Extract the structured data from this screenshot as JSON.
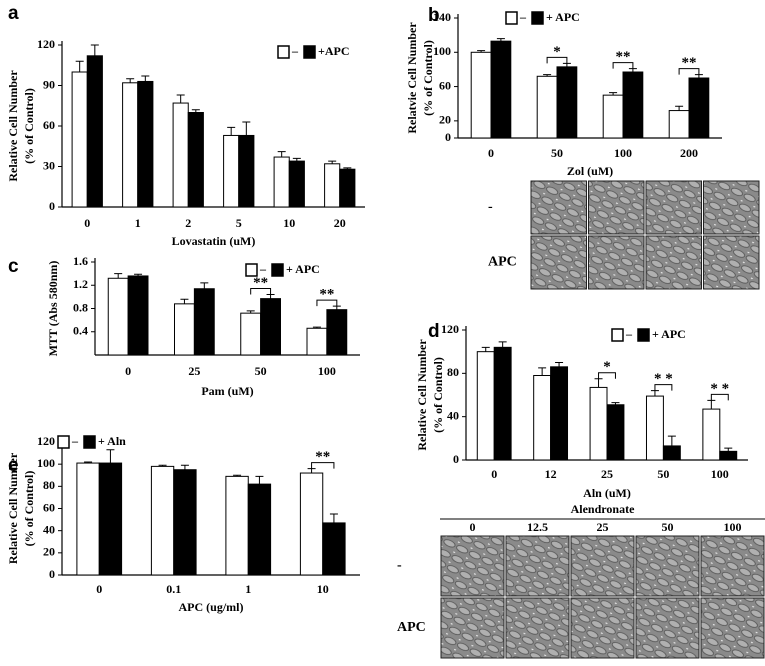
{
  "chart_data": [
    {
      "type": "bar",
      "panel": "a",
      "ylabel": [
        "Relative Cell Number",
        "(% of Control)"
      ],
      "xlabel": "Lovastatin (uM)",
      "categories": [
        "0",
        "1",
        "2",
        "5",
        "10",
        "20"
      ],
      "ylim": [
        0,
        120
      ],
      "yticks": [
        0,
        30,
        60,
        90,
        120
      ],
      "series": [
        {
          "name": "–",
          "color": "#ffffff",
          "values": [
            100,
            92,
            77,
            53,
            37,
            32
          ],
          "errors": [
            8,
            3,
            6,
            6,
            4,
            2
          ]
        },
        {
          "name": "+APC",
          "color": "#000000",
          "values": [
            112,
            93,
            70,
            53,
            34,
            28
          ],
          "errors": [
            8,
            4,
            2,
            10,
            2,
            1
          ]
        }
      ],
      "annotations": []
    },
    {
      "type": "bar",
      "panel": "b",
      "ylabel": [
        "Relatvie Cell Number",
        "(% of Control)"
      ],
      "xlabel": "Zol (uM)",
      "categories": [
        "0",
        "50",
        "100",
        "200"
      ],
      "ylim": [
        0,
        140
      ],
      "yticks": [
        0,
        20,
        60,
        100,
        140
      ],
      "series": [
        {
          "name": "–",
          "color": "#ffffff",
          "values": [
            100,
            72,
            50,
            32
          ],
          "errors": [
            2,
            2,
            3,
            5
          ]
        },
        {
          "name": "+ APC",
          "color": "#000000",
          "values": [
            113,
            83,
            77,
            70
          ],
          "errors": [
            3,
            4,
            4,
            4
          ]
        }
      ],
      "annotations": [
        {
          "category": "50",
          "text": "*"
        },
        {
          "category": "100",
          "text": "**"
        },
        {
          "category": "200",
          "text": "**"
        }
      ]
    },
    {
      "type": "bar",
      "panel": "c",
      "ylabel": [
        "MTT (Abs 580nm)"
      ],
      "xlabel": "Pam (uM)",
      "categories": [
        "0",
        "25",
        "50",
        "100"
      ],
      "ylim": [
        0,
        1.6
      ],
      "yticks": [
        0.4,
        0.8,
        1.2,
        1.6
      ],
      "series": [
        {
          "name": "–",
          "color": "#ffffff",
          "values": [
            1.32,
            0.88,
            0.72,
            0.46
          ],
          "errors": [
            0.08,
            0.08,
            0.04,
            0.02
          ]
        },
        {
          "name": "+ APC",
          "color": "#000000",
          "values": [
            1.36,
            1.14,
            0.97,
            0.78
          ],
          "errors": [
            0.03,
            0.1,
            0.07,
            0.06
          ]
        }
      ],
      "annotations": [
        {
          "category": "50",
          "text": "**"
        },
        {
          "category": "100",
          "text": "**"
        }
      ]
    },
    {
      "type": "bar",
      "panel": "d",
      "ylabel": [
        "Relative Cell Number",
        "(% of Control)"
      ],
      "xlabel": "Aln (uM)",
      "categories": [
        "0",
        "12",
        "25",
        "50",
        "100"
      ],
      "ylim": [
        0,
        120
      ],
      "yticks": [
        0,
        40,
        80,
        120
      ],
      "series": [
        {
          "name": "–",
          "color": "#ffffff",
          "values": [
            100,
            78,
            67,
            59,
            47
          ],
          "errors": [
            4,
            7,
            8,
            5,
            8
          ]
        },
        {
          "name": "+ APC",
          "color": "#000000",
          "values": [
            104,
            86,
            51,
            13,
            8
          ],
          "errors": [
            5,
            4,
            2,
            9,
            3
          ]
        }
      ],
      "annotations": [
        {
          "category": "25",
          "text": "*"
        },
        {
          "category": "50",
          "text": "* *"
        },
        {
          "category": "100",
          "text": "* *"
        }
      ]
    },
    {
      "type": "bar",
      "panel": "e",
      "ylabel": [
        "Relative Cell Number",
        "(% of Control)"
      ],
      "xlabel": "APC (ug/ml)",
      "categories": [
        "0",
        "0.1",
        "1",
        "10"
      ],
      "ylim": [
        0,
        120
      ],
      "yticks": [
        0,
        20,
        40,
        60,
        80,
        100,
        120
      ],
      "series": [
        {
          "name": "–",
          "color": "#ffffff",
          "values": [
            101,
            98,
            89,
            92
          ],
          "errors": [
            1,
            1,
            1,
            4
          ]
        },
        {
          "name": "+ Aln",
          "color": "#000000",
          "values": [
            101,
            95,
            82,
            47
          ],
          "errors": [
            12,
            4,
            7,
            8
          ]
        }
      ],
      "annotations": [
        {
          "category": "10",
          "text": "**"
        }
      ]
    }
  ],
  "image_panels": [
    {
      "row_labels": [
        "-",
        "APC"
      ]
    },
    {
      "title": "Alendronate",
      "column_labels": [
        "0",
        "12.5",
        "25",
        "50",
        "100"
      ],
      "row_labels": [
        "-",
        "APC"
      ]
    }
  ]
}
